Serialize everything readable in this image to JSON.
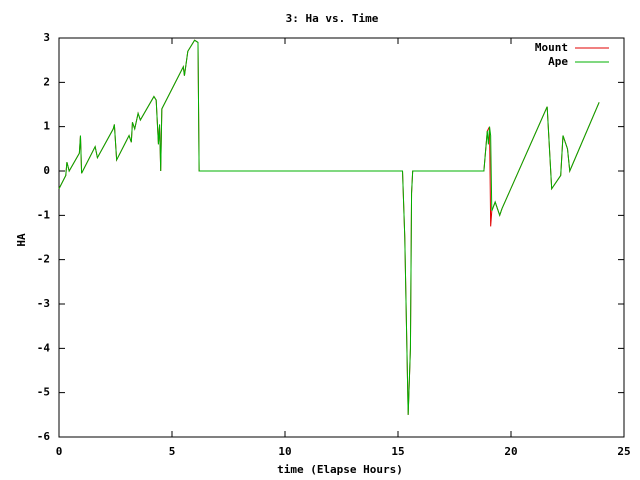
{
  "chart_data": {
    "type": "line",
    "title": "3: Ha vs. Time",
    "x_label": "time (Elapse Hours)",
    "y_label": "HA",
    "x": [
      0,
      0.3,
      0.35,
      0.45,
      0.9,
      0.95,
      1.0,
      1.5,
      1.6,
      1.7,
      2.4,
      2.45,
      2.55,
      3.1,
      3.2,
      3.25,
      3.35,
      3.5,
      3.6,
      4.2,
      4.3,
      4.4,
      4.45,
      4.5,
      4.55,
      5.5,
      5.55,
      5.7,
      6.0,
      6.15,
      6.2,
      15.2,
      15.3,
      15.45,
      15.55,
      15.6,
      15.65,
      18.8,
      18.95,
      19.0,
      19.05,
      19.1,
      19.15,
      19.3,
      19.5,
      19.6,
      21.6,
      21.8,
      22.2,
      22.3,
      22.5,
      22.6,
      23.9
    ],
    "series": [
      {
        "name": "Mount",
        "color": "#e00000",
        "values": [
          -0.4,
          -0.1,
          0.2,
          0.0,
          0.4,
          0.8,
          -0.05,
          0.45,
          0.55,
          0.3,
          0.95,
          1.05,
          0.25,
          0.8,
          0.65,
          1.1,
          0.95,
          1.3,
          1.15,
          1.68,
          1.6,
          0.6,
          1.05,
          0.0,
          1.4,
          2.35,
          2.15,
          2.7,
          2.95,
          2.9,
          0.0,
          0.0,
          -1.5,
          -5.5,
          -4.0,
          -0.5,
          0.0,
          0.0,
          0.9,
          0.95,
          1.0,
          -1.25,
          -0.9,
          -0.7,
          -1.0,
          -0.85,
          1.45,
          -0.4,
          -0.1,
          0.8,
          0.5,
          0.0,
          1.55
        ]
      },
      {
        "name": "Ape",
        "color": "#00b000",
        "values": [
          -0.4,
          -0.1,
          0.2,
          0.0,
          0.4,
          0.8,
          -0.05,
          0.45,
          0.55,
          0.3,
          0.95,
          1.05,
          0.25,
          0.8,
          0.65,
          1.1,
          0.95,
          1.3,
          1.15,
          1.68,
          1.6,
          0.6,
          1.05,
          0.0,
          1.4,
          2.35,
          2.15,
          2.7,
          2.95,
          2.9,
          0.0,
          0.0,
          -1.5,
          -5.5,
          -4.0,
          -0.5,
          0.0,
          0.0,
          0.9,
          0.6,
          1.0,
          0.8,
          -0.9,
          -0.7,
          -1.0,
          -0.85,
          1.45,
          -0.4,
          -0.1,
          0.8,
          0.5,
          0.0,
          1.55
        ]
      }
    ],
    "xlim": [
      0,
      25
    ],
    "xticks": [
      0,
      5,
      10,
      15,
      20,
      25
    ],
    "ylim": [
      -6,
      3
    ],
    "yticks": [
      -6,
      -5,
      -4,
      -3,
      -2,
      -1,
      0,
      1,
      2,
      3
    ],
    "legend": "top-right"
  }
}
